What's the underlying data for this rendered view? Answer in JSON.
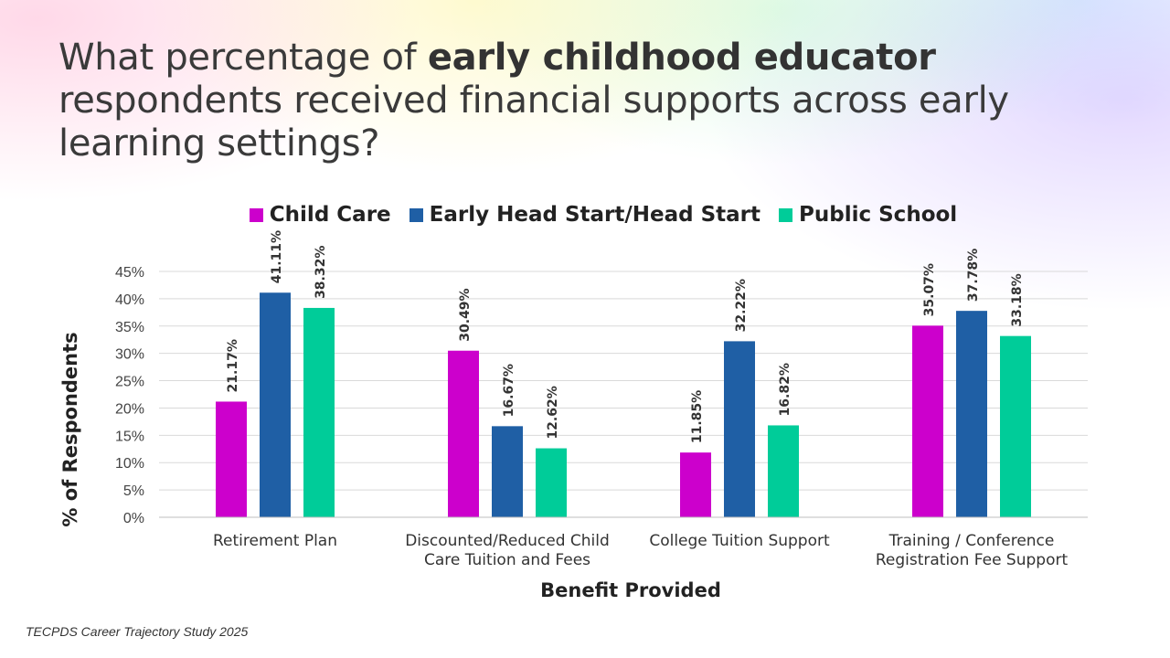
{
  "title": {
    "part1": "What percentage of ",
    "bold": "early childhood educator",
    "part2": " respondents received financial supports across early learning settings?"
  },
  "source": "TECPDS Career Trajectory Study 2025",
  "chart_data": {
    "type": "bar",
    "categories": [
      [
        "Retirement Plan"
      ],
      [
        "Discounted/Reduced Child",
        "Care Tuition and Fees"
      ],
      [
        "College Tuition Support"
      ],
      [
        "Training / Conference",
        "Registration Fee Support"
      ]
    ],
    "series": [
      {
        "name": "Child Care",
        "color": "#cc00cc",
        "values": [
          21.17,
          30.49,
          11.85,
          35.07
        ]
      },
      {
        "name": "Early Head Start/Head Start",
        "color": "#1f5fa5",
        "values": [
          41.11,
          16.67,
          32.22,
          37.78
        ]
      },
      {
        "name": "Public School",
        "color": "#00cc99",
        "values": [
          38.32,
          12.62,
          16.82,
          33.18
        ]
      }
    ],
    "data_labels": [
      [
        "21.17%",
        "30.49%",
        "11.85%",
        "35.07%"
      ],
      [
        "41.11%",
        "16.67%",
        "32.22%",
        "37.78%"
      ],
      [
        "38.32%",
        "12.62%",
        "16.82%",
        "33.18%"
      ]
    ],
    "xlabel": "Benefit Provided",
    "ylabel": "% of Respondents",
    "yticks": [
      "0%",
      "5%",
      "10%",
      "15%",
      "20%",
      "25%",
      "30%",
      "35%",
      "40%",
      "45%"
    ],
    "ylim": [
      0,
      45
    ],
    "grid": true,
    "legend_position": "top"
  }
}
